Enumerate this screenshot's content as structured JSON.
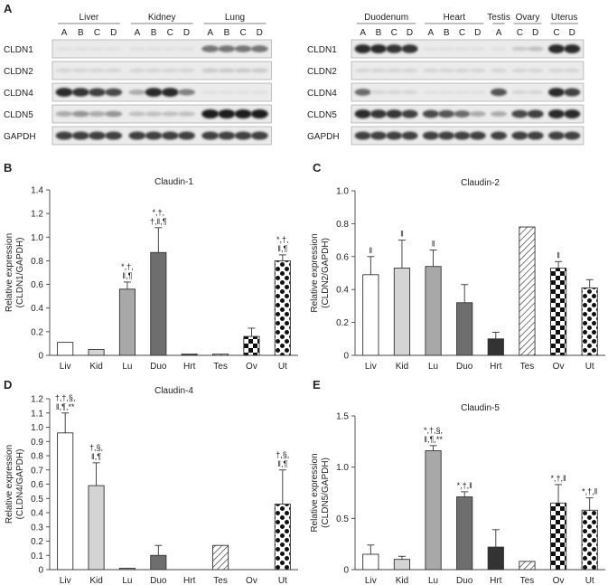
{
  "figure": {
    "panel_a": {
      "letter": "A",
      "left_blot": {
        "tissues": [
          {
            "name": "Liver",
            "lanes": [
              "A",
              "B",
              "C",
              "D"
            ]
          },
          {
            "name": "Kidney",
            "lanes": [
              "A",
              "B",
              "C",
              "D"
            ]
          },
          {
            "name": "Lung",
            "lanes": [
              "A",
              "B",
              "C",
              "D"
            ]
          }
        ]
      },
      "right_blot": {
        "tissues": [
          {
            "name": "Duodenum",
            "lanes": [
              "A",
              "B",
              "C",
              "D"
            ]
          },
          {
            "name": "Heart",
            "lanes": [
              "A",
              "B",
              "C",
              "D"
            ]
          },
          {
            "name": "Testis",
            "lanes": [
              "A"
            ]
          },
          {
            "name": "Ovary",
            "lanes": [
              "C",
              "D"
            ]
          },
          {
            "name": "Uterus",
            "lanes": [
              "C",
              "D"
            ]
          }
        ]
      },
      "rows": [
        "CLDN1",
        "CLDN2",
        "CLDN4",
        "CLDN5",
        "GAPDH"
      ],
      "intensity": {
        "left": [
          [
            0.05,
            0.05,
            0.05,
            0.05,
            0.05,
            0.05,
            0.05,
            0.05,
            0.55,
            0.55,
            0.55,
            0.55
          ],
          [
            0.1,
            0.1,
            0.1,
            0.1,
            0.1,
            0.1,
            0.1,
            0.1,
            0.15,
            0.15,
            0.15,
            0.15
          ],
          [
            0.9,
            0.85,
            0.8,
            0.75,
            0.3,
            0.9,
            0.9,
            0.5,
            0.05,
            0.05,
            0.05,
            0.05
          ],
          [
            0.3,
            0.4,
            0.3,
            0.4,
            0.2,
            0.2,
            0.2,
            0.2,
            0.95,
            0.95,
            0.95,
            0.95
          ],
          [
            0.8,
            0.8,
            0.8,
            0.8,
            0.8,
            0.8,
            0.8,
            0.8,
            0.8,
            0.8,
            0.8,
            0.8
          ]
        ],
        "right": [
          [
            0.9,
            0.9,
            0.85,
            0.85,
            0.05,
            0.05,
            0.05,
            0.05,
            0.05,
            0.15,
            0.2,
            0.9,
            0.9
          ],
          [
            0.1,
            0.1,
            0.1,
            0.1,
            0.1,
            0.1,
            0.1,
            0.1,
            0.1,
            0.1,
            0.1,
            0.1,
            0.1
          ],
          [
            0.6,
            0.1,
            0.1,
            0.1,
            0.05,
            0.05,
            0.05,
            0.05,
            0.7,
            0.1,
            0.1,
            0.9,
            0.8
          ],
          [
            0.9,
            0.85,
            0.85,
            0.8,
            0.75,
            0.7,
            0.6,
            0.3,
            0.3,
            0.75,
            0.8,
            0.9,
            0.9
          ],
          [
            0.8,
            0.8,
            0.8,
            0.8,
            0.8,
            0.8,
            0.8,
            0.8,
            0.8,
            0.8,
            0.8,
            0.8,
            0.8
          ]
        ]
      }
    }
  },
  "chart_data": [
    {
      "panel": "B",
      "type": "bar",
      "title": "Claudin-1",
      "ylabel": "Relative expression (CLDN1/GAPDH)",
      "ylabel_lines": [
        "Relative expression",
        "(CLDN1/GAPDH)"
      ],
      "ylim": [
        0,
        1.4
      ],
      "yticks": [
        "0",
        "0.2",
        "0.4",
        "0.6",
        "0.8",
        "1.0",
        "1.2",
        "1.4"
      ],
      "categories": [
        "Liv",
        "Kid",
        "Lu",
        "Duo",
        "Hrt",
        "Tes",
        "Ov",
        "Ut"
      ],
      "values": [
        0.11,
        0.05,
        0.56,
        0.87,
        0.01,
        0.01,
        0.16,
        0.8
      ],
      "errors": [
        0.0,
        0.0,
        0.06,
        0.21,
        0.0,
        0.0,
        0.07,
        0.05
      ],
      "annotations": [
        "",
        "",
        "*,†,\n‖,¶",
        "*,†,\n†,‖,¶",
        "",
        "",
        "",
        "*,†,\n‖,¶"
      ]
    },
    {
      "panel": "C",
      "type": "bar",
      "title": "Claudin-2",
      "ylabel": "Relative expression (CLDN2/GAPDH)",
      "ylabel_lines": [
        "Relative expression",
        "(CLDN2/GAPDH)"
      ],
      "ylim": [
        0,
        1.0
      ],
      "yticks": [
        "0",
        "0.2",
        "0.4",
        "0.6",
        "0.8",
        "1.0"
      ],
      "categories": [
        "Liv",
        "Kid",
        "Lu",
        "Duo",
        "Hrt",
        "Tes",
        "Ov",
        "Ut"
      ],
      "values": [
        0.49,
        0.53,
        0.54,
        0.32,
        0.1,
        0.78,
        0.53,
        0.41
      ],
      "errors": [
        0.11,
        0.17,
        0.1,
        0.11,
        0.04,
        0.0,
        0.04,
        0.05
      ],
      "annotations": [
        "‖",
        "‖",
        "‖",
        "",
        "",
        "",
        "‖",
        ""
      ]
    },
    {
      "panel": "D",
      "type": "bar",
      "title": "Claudin-4",
      "ylabel": "Relative expression (CLDN4/GAPDH)",
      "ylabel_lines": [
        "Relative expression",
        "(CLDN4/GAPDH)"
      ],
      "ylim": [
        0,
        1.2
      ],
      "yticks": [
        "0",
        "0.1",
        "0.2",
        "0.3",
        "0.4",
        "0.5",
        "0.6",
        "0.7",
        "0.8",
        "0.9",
        "1.0",
        "1.1",
        "1.2"
      ],
      "categories": [
        "Liv",
        "Kid",
        "Lu",
        "Duo",
        "Hrt",
        "Tes",
        "Ov",
        "Ut"
      ],
      "values": [
        0.96,
        0.59,
        0.01,
        0.1,
        0.0,
        0.17,
        0.0,
        0.46
      ],
      "errors": [
        0.14,
        0.16,
        0.0,
        0.07,
        0.0,
        0.0,
        0.0,
        0.24
      ],
      "annotations": [
        "†,†,§,\n‖,¶,**",
        "†,§,\n‖,¶",
        "",
        "",
        "",
        "",
        "",
        "†,§,\n‖,¶"
      ]
    },
    {
      "panel": "E",
      "type": "bar",
      "title": "Claudin-5",
      "ylabel": "Relative expression (CLDN5/GAPDH)",
      "ylabel_lines": [
        "Relative expression",
        "(CLDN5/GAPDH)"
      ],
      "ylim": [
        0,
        1.5
      ],
      "yticks": [
        "0",
        "0.5",
        "1.0",
        "1.5"
      ],
      "categories": [
        "Liv",
        "Kid",
        "Lu",
        "Duo",
        "Hrt",
        "Tes",
        "Ov",
        "Ut"
      ],
      "values": [
        0.15,
        0.1,
        1.16,
        0.71,
        0.22,
        0.08,
        0.65,
        0.58
      ],
      "errors": [
        0.09,
        0.03,
        0.05,
        0.05,
        0.17,
        0.0,
        0.18,
        0.12
      ],
      "annotations": [
        "",
        "",
        "*,†,§,\n‖,¶,**",
        "*,†,‖",
        "",
        "",
        "*,†,‖",
        "*,†,‖"
      ]
    }
  ]
}
